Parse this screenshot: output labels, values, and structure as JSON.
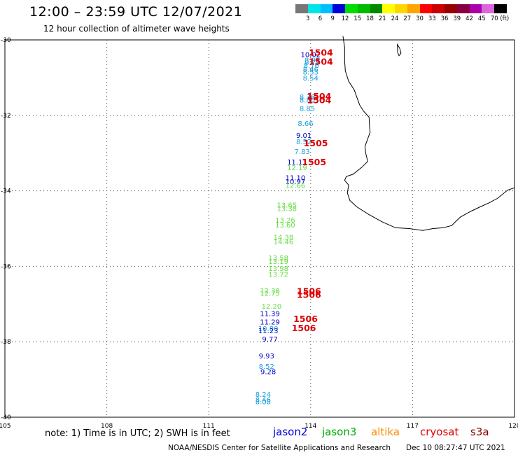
{
  "header": {
    "title": "12:00 – 23:59 UTC 12/07/2021",
    "subtitle": "12 hour collection of altimeter wave heights"
  },
  "legend": {
    "colors": [
      "#777777",
      "#00e5e5",
      "#00bfff",
      "#0000dd",
      "#00dd00",
      "#00bb00",
      "#008800",
      "#ffff00",
      "#ffd700",
      "#ffa500",
      "#ff0000",
      "#cc0000",
      "#990000",
      "#880044",
      "#aa00aa",
      "#dd66dd",
      "#000000"
    ],
    "labels": [
      "3",
      "6",
      "9",
      "12",
      "15",
      "18",
      "21",
      "24",
      "27",
      "30",
      "33",
      "36",
      "39",
      "42",
      "45",
      "70 (ft)"
    ]
  },
  "map": {
    "lon_range": [
      105,
      120
    ],
    "lat_range": [
      -40,
      -30
    ],
    "lon_ticks": [
      "105",
      "108",
      "111",
      "114",
      "117",
      "120"
    ],
    "lat_ticks": [
      "-30",
      "-32",
      "-34",
      "-36",
      "-38",
      "-40"
    ],
    "coastline_color": "#000000",
    "observations": [
      {
        "lon": 114.0,
        "lat": -30.45,
        "text": "10.02",
        "color": "#0000cc"
      },
      {
        "lon": 114.05,
        "lat": -30.6,
        "text": "8.95",
        "color": "#1a9fdf"
      },
      {
        "lon": 114.05,
        "lat": -30.66,
        "text": "8.79",
        "color": "#1a9fdf"
      },
      {
        "lon": 114.02,
        "lat": -30.74,
        "text": "8.76",
        "color": "#1a9fdf"
      },
      {
        "lon": 114.0,
        "lat": -30.84,
        "text": "8.46",
        "color": "#1a9fdf"
      },
      {
        "lon": 114.0,
        "lat": -30.92,
        "text": "8.53",
        "color": "#1a9fdf"
      },
      {
        "lon": 114.0,
        "lat": -31.08,
        "text": "8.54",
        "color": "#1a9fdf"
      },
      {
        "lon": 113.9,
        "lat": -31.58,
        "text": "8.36",
        "color": "#1a9fdf"
      },
      {
        "lon": 113.9,
        "lat": -31.66,
        "text": "8.80",
        "color": "#1a9fdf"
      },
      {
        "lon": 113.9,
        "lat": -31.88,
        "text": "8.85",
        "color": "#1a9fdf"
      },
      {
        "lon": 113.85,
        "lat": -32.28,
        "text": "8.66",
        "color": "#1a9fdf"
      },
      {
        "lon": 113.8,
        "lat": -32.6,
        "text": "9.01",
        "color": "#0000cc"
      },
      {
        "lon": 113.8,
        "lat": -32.76,
        "text": "8.52",
        "color": "#1a9fdf"
      },
      {
        "lon": 113.75,
        "lat": -33.02,
        "text": "7.83",
        "color": "#1a9fdf"
      },
      {
        "lon": 113.6,
        "lat": -33.3,
        "text": "11.11",
        "color": "#0000cc"
      },
      {
        "lon": 113.6,
        "lat": -33.45,
        "text": "12.19",
        "color": "#66dd44"
      },
      {
        "lon": 113.55,
        "lat": -33.72,
        "text": "11.10",
        "color": "#0000cc"
      },
      {
        "lon": 113.55,
        "lat": -33.82,
        "text": "10.97",
        "color": "#0000cc"
      },
      {
        "lon": 113.55,
        "lat": -33.92,
        "text": "12.66",
        "color": "#66dd44"
      },
      {
        "lon": 113.3,
        "lat": -34.44,
        "text": "13.65",
        "color": "#66dd44"
      },
      {
        "lon": 113.3,
        "lat": -34.54,
        "text": "13.38",
        "color": "#66dd44"
      },
      {
        "lon": 113.25,
        "lat": -34.84,
        "text": "13.26",
        "color": "#66dd44"
      },
      {
        "lon": 113.25,
        "lat": -34.97,
        "text": "13.60",
        "color": "#66dd44"
      },
      {
        "lon": 113.2,
        "lat": -35.3,
        "text": "14.38",
        "color": "#66dd44"
      },
      {
        "lon": 113.2,
        "lat": -35.42,
        "text": "14.46",
        "color": "#66dd44"
      },
      {
        "lon": 113.05,
        "lat": -35.84,
        "text": "13.58",
        "color": "#66dd44"
      },
      {
        "lon": 113.05,
        "lat": -35.94,
        "text": "13.19",
        "color": "#66dd44"
      },
      {
        "lon": 113.05,
        "lat": -36.12,
        "text": "13.98",
        "color": "#66dd44"
      },
      {
        "lon": 113.05,
        "lat": -36.28,
        "text": "13.72",
        "color": "#66dd44"
      },
      {
        "lon": 112.8,
        "lat": -36.72,
        "text": "12.38",
        "color": "#66dd44"
      },
      {
        "lon": 112.8,
        "lat": -36.78,
        "text": "12.75",
        "color": "#66dd44"
      },
      {
        "lon": 112.85,
        "lat": -37.12,
        "text": "12.20",
        "color": "#66dd44"
      },
      {
        "lon": 112.8,
        "lat": -37.32,
        "text": "11.39",
        "color": "#0000cc"
      },
      {
        "lon": 112.8,
        "lat": -37.54,
        "text": "11.29",
        "color": "#0000cc"
      },
      {
        "lon": 112.75,
        "lat": -37.72,
        "text": "10.80",
        "color": "#1a9fdf"
      },
      {
        "lon": 112.75,
        "lat": -37.77,
        "text": "11.23",
        "color": "#0000cc"
      },
      {
        "lon": 112.8,
        "lat": -38.0,
        "text": "9.77",
        "color": "#0000cc"
      },
      {
        "lon": 112.7,
        "lat": -38.44,
        "text": "9.93",
        "color": "#0000cc"
      },
      {
        "lon": 112.7,
        "lat": -38.72,
        "text": "8.52",
        "color": "#1a9fdf"
      },
      {
        "lon": 112.75,
        "lat": -38.86,
        "text": "9.28",
        "color": "#0000cc"
      },
      {
        "lon": 112.6,
        "lat": -39.46,
        "text": "8.24",
        "color": "#1a9fdf"
      },
      {
        "lon": 112.6,
        "lat": -39.6,
        "text": "8.46",
        "color": "#1a9fdf"
      },
      {
        "lon": 112.6,
        "lat": -39.66,
        "text": "8.08",
        "color": "#1a9fdf"
      }
    ],
    "pass_times": [
      {
        "lon": 114.3,
        "lat": -30.42,
        "text": "1504",
        "color": "#dd0000"
      },
      {
        "lon": 114.3,
        "lat": -30.66,
        "text": "1504",
        "color": "#dd0000"
      },
      {
        "lon": 114.25,
        "lat": -31.58,
        "text": "1504",
        "color": "#dd0000"
      },
      {
        "lon": 114.25,
        "lat": -31.68,
        "text": "1504",
        "color": "#dd0000"
      },
      {
        "lon": 114.15,
        "lat": -32.82,
        "text": "1505",
        "color": "#dd0000"
      },
      {
        "lon": 114.1,
        "lat": -33.32,
        "text": "1505",
        "color": "#dd0000"
      },
      {
        "lon": 113.95,
        "lat": -36.74,
        "text": "1506",
        "color": "#dd0000"
      },
      {
        "lon": 113.95,
        "lat": -36.84,
        "text": "1506",
        "color": "#dd0000"
      },
      {
        "lon": 113.85,
        "lat": -37.48,
        "text": "1506",
        "color": "#dd0000"
      },
      {
        "lon": 113.8,
        "lat": -37.72,
        "text": "1506",
        "color": "#dd0000"
      }
    ],
    "coastline": [
      [
        114.95,
        -29.9
      ],
      [
        115.0,
        -30.2
      ],
      [
        115.0,
        -30.55
      ],
      [
        115.02,
        -30.82
      ],
      [
        115.12,
        -31.1
      ],
      [
        115.28,
        -31.32
      ],
      [
        115.36,
        -31.52
      ],
      [
        115.44,
        -31.72
      ],
      [
        115.55,
        -31.88
      ],
      [
        115.72,
        -32.05
      ],
      [
        115.73,
        -32.25
      ],
      [
        115.75,
        -32.45
      ],
      [
        115.68,
        -32.62
      ],
      [
        115.6,
        -32.82
      ],
      [
        115.62,
        -33.0
      ],
      [
        115.68,
        -33.22
      ],
      [
        115.5,
        -33.38
      ],
      [
        115.25,
        -33.56
      ],
      [
        115.05,
        -33.62
      ],
      [
        115.0,
        -33.72
      ],
      [
        115.12,
        -33.85
      ],
      [
        115.08,
        -34.05
      ],
      [
        115.15,
        -34.25
      ],
      [
        115.35,
        -34.42
      ],
      [
        115.7,
        -34.62
      ],
      [
        116.1,
        -34.82
      ],
      [
        116.5,
        -34.98
      ],
      [
        116.9,
        -35.0
      ],
      [
        117.3,
        -35.05
      ],
      [
        117.6,
        -35.0
      ],
      [
        117.9,
        -34.98
      ],
      [
        118.15,
        -34.92
      ],
      [
        118.4,
        -34.7
      ],
      [
        118.7,
        -34.55
      ],
      [
        119.0,
        -34.42
      ],
      [
        119.25,
        -34.32
      ],
      [
        119.5,
        -34.2
      ],
      [
        119.8,
        -33.98
      ],
      [
        120.0,
        -33.92
      ]
    ],
    "island": [
      [
        116.55,
        -30.12
      ],
      [
        116.62,
        -30.22
      ],
      [
        116.66,
        -30.35
      ],
      [
        116.6,
        -30.42
      ],
      [
        116.56,
        -30.33
      ]
    ]
  },
  "footer": {
    "note": "note: 1) Time is in UTC; 2) SWH is in feet",
    "missions": [
      {
        "name": "jason2",
        "color": "#0000dd"
      },
      {
        "name": "jason3",
        "color": "#00aa00"
      },
      {
        "name": "altika",
        "color": "#ff8c00"
      },
      {
        "name": "cryosat",
        "color": "#dd0000"
      },
      {
        "name": "s3a",
        "color": "#880000"
      }
    ],
    "credit": "NOAA/NESDIS Center for Satellite Applications and Research",
    "timestamp": "Dec 10 08:27:47 UTC 2021"
  }
}
